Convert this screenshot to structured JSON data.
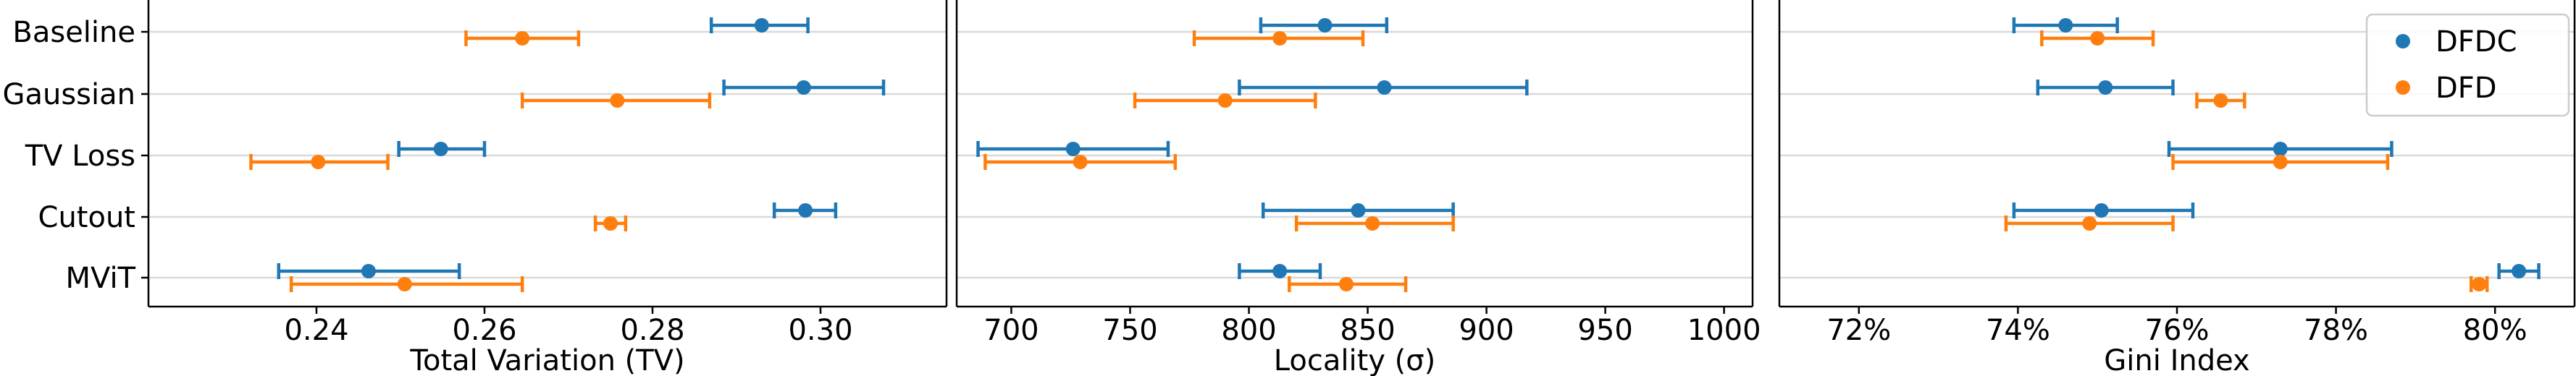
{
  "chart_data": [
    {
      "type": "errorbar",
      "title": "",
      "xlabel": "Total Variation (TV)",
      "ylabel": "",
      "categories": [
        "Baseline",
        "Gaussian",
        "TV Loss",
        "Cutout",
        "MViT"
      ],
      "xlim": [
        0.22,
        0.315
      ],
      "xticks": [
        0.24,
        0.26,
        0.28,
        0.3
      ],
      "xtick_labels": [
        "0.24",
        "0.26",
        "0.28",
        "0.30"
      ],
      "grid": "horizontal",
      "series": [
        {
          "name": "DFDC",
          "color": "#1f77b4",
          "values": [
            0.293,
            0.298,
            0.2548,
            0.2982,
            0.2462
          ],
          "err_low": [
            0.287,
            0.2885,
            0.2498,
            0.2945,
            0.2355
          ],
          "err_high": [
            0.2985,
            0.3075,
            0.26,
            0.3018,
            0.257
          ]
        },
        {
          "name": "DFD",
          "color": "#ff7f0e",
          "values": [
            0.2645,
            0.2758,
            0.2402,
            0.275,
            0.2505
          ],
          "err_low": [
            0.2578,
            0.2645,
            0.2322,
            0.2732,
            0.237
          ],
          "err_high": [
            0.2712,
            0.2868,
            0.2485,
            0.2768,
            0.2645
          ]
        }
      ]
    },
    {
      "type": "errorbar",
      "title": "",
      "xlabel": "Locality (σ)",
      "ylabel": "",
      "categories": [
        "Baseline",
        "Gaussian",
        "TV Loss",
        "Cutout",
        "MViT"
      ],
      "xlim": [
        677,
        1012
      ],
      "xticks": [
        700,
        750,
        800,
        850,
        900,
        950,
        1000
      ],
      "xtick_labels": [
        "700",
        "750",
        "800",
        "850",
        "900",
        "950",
        "1000"
      ],
      "grid": "horizontal",
      "series": [
        {
          "name": "DFDC",
          "color": "#1f77b4",
          "values": [
            832,
            857,
            726,
            846,
            813
          ],
          "err_low": [
            805,
            796,
            686,
            806,
            796
          ],
          "err_high": [
            858,
            917,
            766,
            886,
            830
          ]
        },
        {
          "name": "DFD",
          "color": "#ff7f0e",
          "values": [
            813,
            790,
            729,
            852,
            841
          ],
          "err_low": [
            777,
            752,
            689,
            820,
            817
          ],
          "err_high": [
            848,
            828,
            769,
            886,
            866
          ]
        }
      ]
    },
    {
      "type": "errorbar",
      "title": "",
      "xlabel": "Gini Index",
      "ylabel": "",
      "categories": [
        "Baseline",
        "Gaussian",
        "TV Loss",
        "Cutout",
        "MViT"
      ],
      "xlim": [
        71.0,
        81.0
      ],
      "xticks": [
        72,
        74,
        76,
        78,
        80
      ],
      "xtick_labels": [
        "72%",
        "74%",
        "76%",
        "78%",
        "80%"
      ],
      "grid": "horizontal",
      "legend": "top-right",
      "series": [
        {
          "name": "DFDC",
          "color": "#1f77b4",
          "values": [
            74.6,
            75.1,
            77.3,
            75.05,
            80.3
          ],
          "err_low": [
            73.95,
            74.25,
            75.9,
            73.95,
            80.05
          ],
          "err_high": [
            75.25,
            75.95,
            78.7,
            76.2,
            80.55
          ]
        },
        {
          "name": "DFD",
          "color": "#ff7f0e",
          "values": [
            75.0,
            76.55,
            77.3,
            74.9,
            79.8
          ],
          "err_low": [
            74.3,
            76.25,
            75.95,
            73.85,
            79.7
          ],
          "err_high": [
            75.7,
            76.85,
            78.65,
            75.95,
            79.9
          ]
        }
      ]
    }
  ]
}
